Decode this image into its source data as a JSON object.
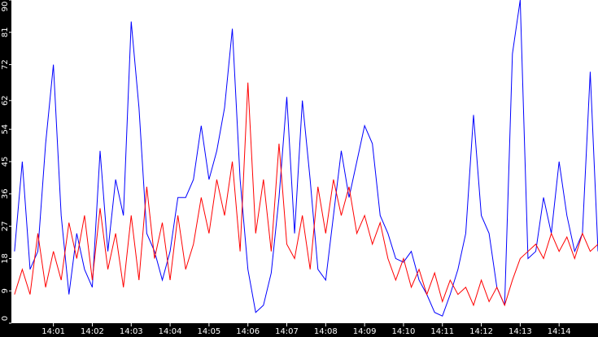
{
  "chart_data": {
    "type": "line",
    "x": [
      0,
      0.2,
      0.4,
      0.6,
      0.8,
      1,
      1.2,
      1.4,
      1.6,
      1.8,
      2,
      2.2,
      2.4,
      2.6,
      2.8,
      3,
      3.2,
      3.4,
      3.6,
      3.8,
      4,
      4.2,
      4.4,
      4.6,
      4.8,
      5,
      5.2,
      5.4,
      5.6,
      5.8,
      6,
      6.2,
      6.4,
      6.6,
      6.8,
      7,
      7.2,
      7.4,
      7.6,
      7.8,
      8,
      8.2,
      8.4,
      8.6,
      8.8,
      9,
      9.2,
      9.4,
      9.6,
      9.8,
      10,
      10.2,
      10.4,
      10.6,
      10.8,
      11,
      11.2,
      11.4,
      11.6,
      11.8,
      12,
      12.2,
      12.4,
      12.6,
      12.8,
      13,
      13.2,
      13.4,
      13.6,
      13.8,
      14,
      14.2,
      14.4,
      14.6,
      14.8,
      15
    ],
    "series": [
      {
        "color": "#0000ff",
        "values": [
          20,
          45,
          15,
          20,
          50,
          72,
          30,
          8,
          25,
          15,
          10,
          48,
          20,
          40,
          30,
          84,
          60,
          25,
          20,
          12,
          20,
          35,
          35,
          40,
          55,
          40,
          48,
          60,
          82,
          40,
          15,
          3,
          5,
          14,
          35,
          63,
          25,
          62,
          40,
          15,
          12,
          30,
          48,
          35,
          45,
          55,
          50,
          30,
          25,
          18,
          17,
          20,
          12,
          8,
          3,
          2,
          8,
          15,
          25,
          58,
          30,
          25,
          10,
          5,
          75,
          90,
          18,
          20,
          35,
          25,
          45,
          30,
          20,
          25,
          70,
          20
        ]
      },
      {
        "color": "#ff0000",
        "values": [
          8,
          15,
          8,
          25,
          10,
          20,
          12,
          28,
          18,
          30,
          12,
          32,
          15,
          25,
          10,
          30,
          12,
          38,
          18,
          28,
          12,
          30,
          15,
          22,
          35,
          25,
          40,
          30,
          45,
          20,
          67,
          25,
          40,
          20,
          50,
          22,
          18,
          30,
          15,
          38,
          25,
          40,
          30,
          38,
          25,
          30,
          22,
          28,
          18,
          12,
          18,
          10,
          15,
          8,
          14,
          6,
          12,
          8,
          10,
          5,
          12,
          6,
          10,
          5,
          12,
          18,
          20,
          22,
          18,
          25,
          20,
          24,
          18,
          25,
          20,
          22
        ]
      }
    ],
    "xlim": [
      -0.08,
      15.0
    ],
    "xticks": [
      {
        "value": 1,
        "label": "14:01"
      },
      {
        "value": 2,
        "label": "14:02"
      },
      {
        "value": 3,
        "label": "14:03"
      },
      {
        "value": 4,
        "label": "14:04"
      },
      {
        "value": 5,
        "label": "14:05"
      },
      {
        "value": 6,
        "label": "14:06"
      },
      {
        "value": 7,
        "label": "14:07"
      },
      {
        "value": 8,
        "label": "14:08"
      },
      {
        "value": 9,
        "label": "14:09"
      },
      {
        "value": 10,
        "label": "14:10"
      },
      {
        "value": 11,
        "label": "14:11"
      },
      {
        "value": 12,
        "label": "14:12"
      },
      {
        "value": 13,
        "label": "14:13"
      },
      {
        "value": 14,
        "label": "14:14"
      }
    ],
    "ylim": [
      0,
      90
    ],
    "yticks": [
      0,
      9,
      18,
      27,
      36,
      45,
      54,
      62,
      72,
      81,
      90
    ]
  }
}
